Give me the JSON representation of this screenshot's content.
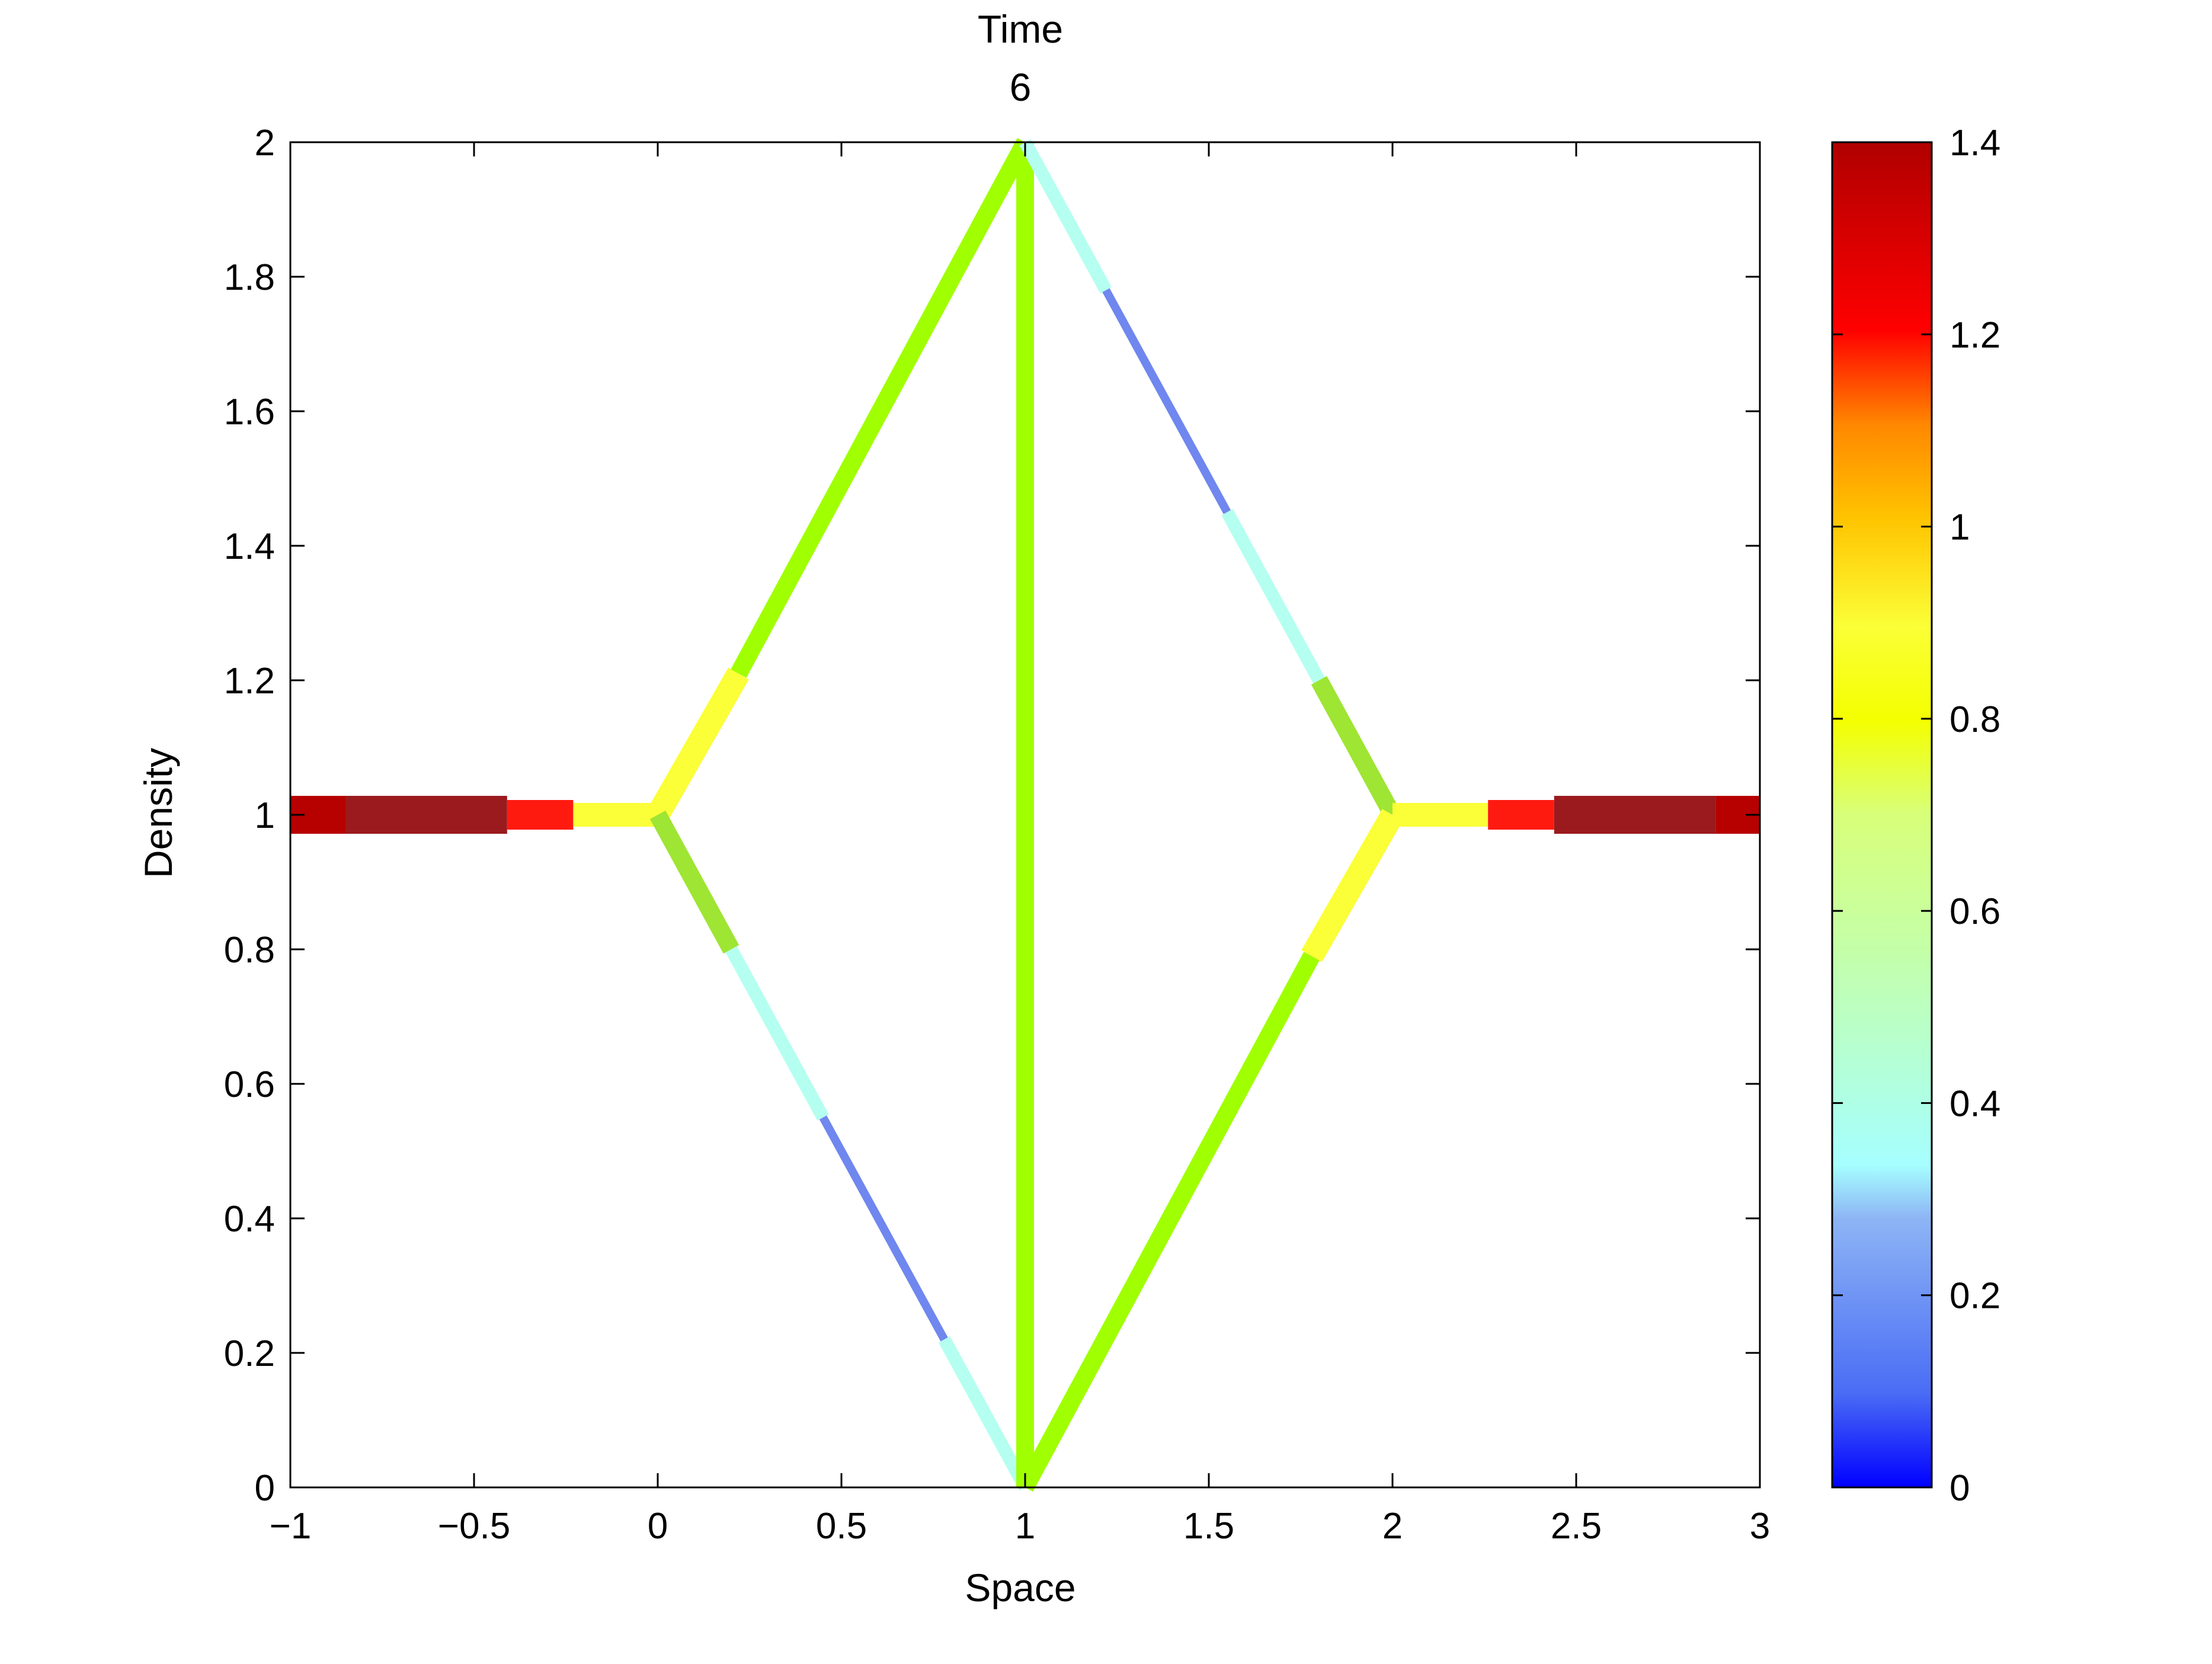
{
  "chart_data": {
    "type": "line",
    "title_lines": [
      "Time",
      "6"
    ],
    "xlabel": "Space",
    "ylabel": "Density",
    "xlim": [
      -1,
      3
    ],
    "ylim": [
      0,
      2
    ],
    "xticks": [
      {
        "value": -1,
        "label": "−1"
      },
      {
        "value": -0.5,
        "label": "−0.5"
      },
      {
        "value": 0,
        "label": "0"
      },
      {
        "value": 0.5,
        "label": "0.5"
      },
      {
        "value": 1,
        "label": "1"
      },
      {
        "value": 1.5,
        "label": "1.5"
      },
      {
        "value": 2,
        "label": "2"
      },
      {
        "value": 2.5,
        "label": "2.5"
      },
      {
        "value": 3,
        "label": "3"
      }
    ],
    "yticks": [
      {
        "value": 0,
        "label": "0"
      },
      {
        "value": 0.2,
        "label": "0.2"
      },
      {
        "value": 0.4,
        "label": "0.4"
      },
      {
        "value": 0.6,
        "label": "0.6"
      },
      {
        "value": 0.8,
        "label": "0.8"
      },
      {
        "value": 1,
        "label": "1"
      },
      {
        "value": 1.2,
        "label": "1.2"
      },
      {
        "value": 1.4,
        "label": "1.4"
      },
      {
        "value": 1.6,
        "label": "1.6"
      },
      {
        "value": 1.8,
        "label": "1.8"
      },
      {
        "value": 2,
        "label": "2"
      }
    ],
    "grid": false,
    "colorbar": {
      "range": [
        0,
        1.4
      ],
      "colormap": "jet",
      "ticks": [
        {
          "value": 0,
          "label": "0"
        },
        {
          "value": 0.2,
          "label": "0.2"
        },
        {
          "value": 0.4,
          "label": "0.4"
        },
        {
          "value": 0.6,
          "label": "0.6"
        },
        {
          "value": 0.8,
          "label": "0.8"
        },
        {
          "value": 1,
          "label": "1"
        },
        {
          "value": 1.2,
          "label": "1.2"
        },
        {
          "value": 1.4,
          "label": "1.4"
        }
      ]
    },
    "segments": [
      {
        "name": "left-edge-1",
        "x": [
          -1,
          -0.85
        ],
        "y": [
          1,
          1
        ],
        "value": 1.4,
        "color": "#b70000"
      },
      {
        "name": "left-edge-2",
        "x": [
          -0.85,
          -0.41
        ],
        "y": [
          1,
          1
        ],
        "value": 1.35,
        "color": "#9a1a1d"
      },
      {
        "name": "left-edge-3",
        "x": [
          -0.41,
          -0.23
        ],
        "y": [
          1,
          1
        ],
        "value": 1.22,
        "color": "#ff1a10"
      },
      {
        "name": "left-edge-4",
        "x": [
          -0.23,
          0
        ],
        "y": [
          1,
          1
        ],
        "value": 0.88,
        "color": "#fbff37"
      },
      {
        "name": "upper-left-1",
        "x": [
          0,
          0.22
        ],
        "y": [
          1,
          1.21
        ],
        "value": 0.88,
        "color": "#fbff37"
      },
      {
        "name": "upper-left-2",
        "x": [
          0.22,
          1
        ],
        "y": [
          1.21,
          2
        ],
        "value": 0.72,
        "color": "#a0ff00"
      },
      {
        "name": "lower-left-1",
        "x": [
          0,
          0.2
        ],
        "y": [
          1,
          0.8
        ],
        "value": 0.62,
        "color": "#9fe533"
      },
      {
        "name": "lower-left-2",
        "x": [
          0.2,
          0.45
        ],
        "y": [
          0.8,
          0.55
        ],
        "value": 0.4,
        "color": "#b4fff0"
      },
      {
        "name": "lower-left-3",
        "x": [
          0.45,
          0.78
        ],
        "y": [
          0.55,
          0.22
        ],
        "value": 0.15,
        "color": "#6f87ee"
      },
      {
        "name": "lower-left-4",
        "x": [
          0.78,
          1
        ],
        "y": [
          0.22,
          0
        ],
        "value": 0.4,
        "color": "#b4fff0"
      },
      {
        "name": "vertical",
        "x": [
          1,
          1
        ],
        "y": [
          0,
          2
        ],
        "value": 0.72,
        "color": "#a0ff00"
      },
      {
        "name": "upper-right-1",
        "x": [
          1,
          1.22
        ],
        "y": [
          2,
          1.78
        ],
        "value": 0.4,
        "color": "#b4fff0"
      },
      {
        "name": "upper-right-2",
        "x": [
          1.22,
          1.55
        ],
        "y": [
          1.78,
          1.45
        ],
        "value": 0.15,
        "color": "#6f87ee"
      },
      {
        "name": "upper-right-3",
        "x": [
          1.55,
          1.8
        ],
        "y": [
          1.45,
          1.2
        ],
        "value": 0.4,
        "color": "#b4fff0"
      },
      {
        "name": "upper-right-4",
        "x": [
          1.8,
          2
        ],
        "y": [
          1.2,
          1
        ],
        "value": 0.62,
        "color": "#9fe533"
      },
      {
        "name": "lower-right-1",
        "x": [
          1,
          1.78
        ],
        "y": [
          0,
          0.79
        ],
        "value": 0.72,
        "color": "#a0ff00"
      },
      {
        "name": "lower-right-2",
        "x": [
          1.78,
          2
        ],
        "y": [
          0.79,
          1
        ],
        "value": 0.88,
        "color": "#fbff37"
      },
      {
        "name": "right-edge-1",
        "x": [
          2,
          2.26
        ],
        "y": [
          1,
          1
        ],
        "value": 0.88,
        "color": "#fbff37"
      },
      {
        "name": "right-edge-2",
        "x": [
          2.26,
          2.44
        ],
        "y": [
          1,
          1
        ],
        "value": 1.22,
        "color": "#ff1a10"
      },
      {
        "name": "right-edge-3",
        "x": [
          2.44,
          2.88
        ],
        "y": [
          1,
          1
        ],
        "value": 1.35,
        "color": "#9a1a1d"
      },
      {
        "name": "right-edge-4",
        "x": [
          2.88,
          3
        ],
        "y": [
          1,
          1
        ],
        "value": 1.4,
        "color": "#b70000"
      }
    ]
  }
}
